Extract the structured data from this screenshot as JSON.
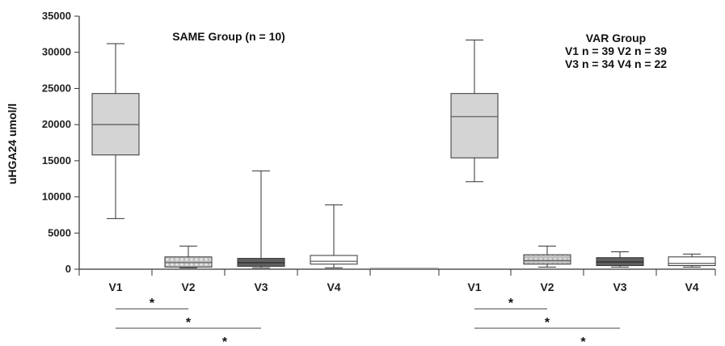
{
  "chart_data": {
    "type": "box",
    "ylabel": "uHGA24 umol/l",
    "ylim": [
      0,
      35000
    ],
    "yticks": [
      "0",
      "5000",
      "10000",
      "15000",
      "20000",
      "25000",
      "30000",
      "35000"
    ],
    "groups": [
      {
        "annotation_lines": [
          "SAME Group (n = 10)"
        ],
        "boxes": [
          {
            "label": "V1",
            "min": 7000,
            "q1": 15800,
            "median": 20000,
            "q3": 24300,
            "max": 31200,
            "fill": "light-gray"
          },
          {
            "label": "V2",
            "min": 200,
            "q1": 300,
            "median": 900,
            "q3": 1700,
            "max": 3200,
            "fill": "dotted-gray"
          },
          {
            "label": "V3",
            "min": 200,
            "q1": 400,
            "median": 900,
            "q3": 1500,
            "max": 13600,
            "fill": "dark-gray"
          },
          {
            "label": "V4",
            "min": 200,
            "q1": 700,
            "median": 1100,
            "q3": 1900,
            "max": 8900,
            "fill": "white"
          }
        ]
      },
      {
        "annotation_lines": [
          "VAR Group",
          "V1  n = 39   V2  n = 39",
          "V3  n = 34   V4  n = 22"
        ],
        "boxes": [
          {
            "label": "V1",
            "min": 12100,
            "q1": 15400,
            "median": 21100,
            "q3": 24300,
            "max": 31700,
            "fill": "light-gray"
          },
          {
            "label": "V2",
            "min": 300,
            "q1": 700,
            "median": 1200,
            "q3": 2000,
            "max": 3200,
            "fill": "dotted-gray"
          },
          {
            "label": "V3",
            "min": 300,
            "q1": 500,
            "median": 1000,
            "q3": 1600,
            "max": 2400,
            "fill": "dark-gray"
          },
          {
            "label": "V4",
            "min": 300,
            "q1": 500,
            "median": 800,
            "q3": 1700,
            "max": 2100,
            "fill": "white"
          }
        ]
      }
    ],
    "significance": [
      {
        "group": 0,
        "from": "V1",
        "to": "V2",
        "label": "*"
      },
      {
        "group": 0,
        "from": "V1",
        "to": "V3",
        "label": "*"
      },
      {
        "group": 0,
        "from": "V1",
        "to": "V4",
        "label": "*"
      },
      {
        "group": 1,
        "from": "V1",
        "to": "V2",
        "label": "*"
      },
      {
        "group": 1,
        "from": "V1",
        "to": "V3",
        "label": "*"
      },
      {
        "group": 1,
        "from": "V1",
        "to": "V4",
        "label": "*"
      }
    ],
    "colors": {
      "light-gray": "#d4d4d4",
      "dotted-gray": "#bdbdbd",
      "dark-gray": "#606060",
      "white": "#ffffff",
      "median": "#555555",
      "axis": "#333333"
    }
  }
}
